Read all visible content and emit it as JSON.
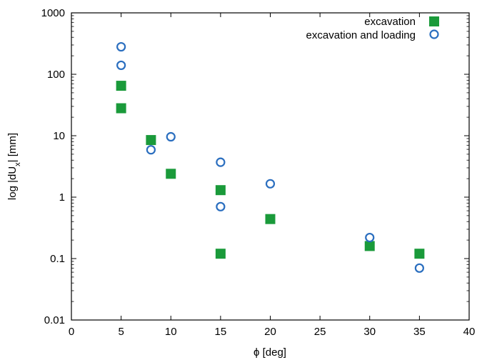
{
  "chart_data": {
    "type": "scatter",
    "title": "",
    "xlabel": "ϕ [deg]",
    "ylabel_parts": [
      "log |dU",
      "x",
      "| [mm]"
    ],
    "xlim": [
      0,
      40
    ],
    "ylim": [
      0.01,
      1000
    ],
    "yscale": "log",
    "x_ticks": [
      0,
      5,
      10,
      15,
      20,
      25,
      30,
      35,
      40
    ],
    "y_ticks": [
      0.01,
      0.1,
      1,
      10,
      100,
      1000
    ],
    "x_tick_labels": [
      "0",
      "5",
      "10",
      "15",
      "20",
      "25",
      "30",
      "35",
      "40"
    ],
    "y_tick_labels": [
      "0.01",
      "0.1",
      "1",
      "10",
      "100",
      "1000"
    ],
    "grid": false,
    "legend_position": "top-right",
    "series": [
      {
        "name": "excavation",
        "marker": "filled-square",
        "color": "#1a9a3a",
        "points": [
          [
            5,
            65
          ],
          [
            5,
            28
          ],
          [
            8,
            8.5
          ],
          [
            10,
            2.4
          ],
          [
            15,
            1.3
          ],
          [
            15,
            0.12
          ],
          [
            20,
            0.44
          ],
          [
            30,
            0.16
          ],
          [
            35,
            0.12
          ]
        ]
      },
      {
        "name": "excavation and loading",
        "marker": "open-circle",
        "color": "#2a6ebf",
        "points": [
          [
            5,
            280
          ],
          [
            5,
            140
          ],
          [
            8,
            5.9
          ],
          [
            10,
            9.6
          ],
          [
            15,
            3.7
          ],
          [
            15,
            0.7
          ],
          [
            20,
            1.65
          ],
          [
            30,
            0.22
          ],
          [
            35,
            0.07
          ]
        ]
      }
    ]
  }
}
